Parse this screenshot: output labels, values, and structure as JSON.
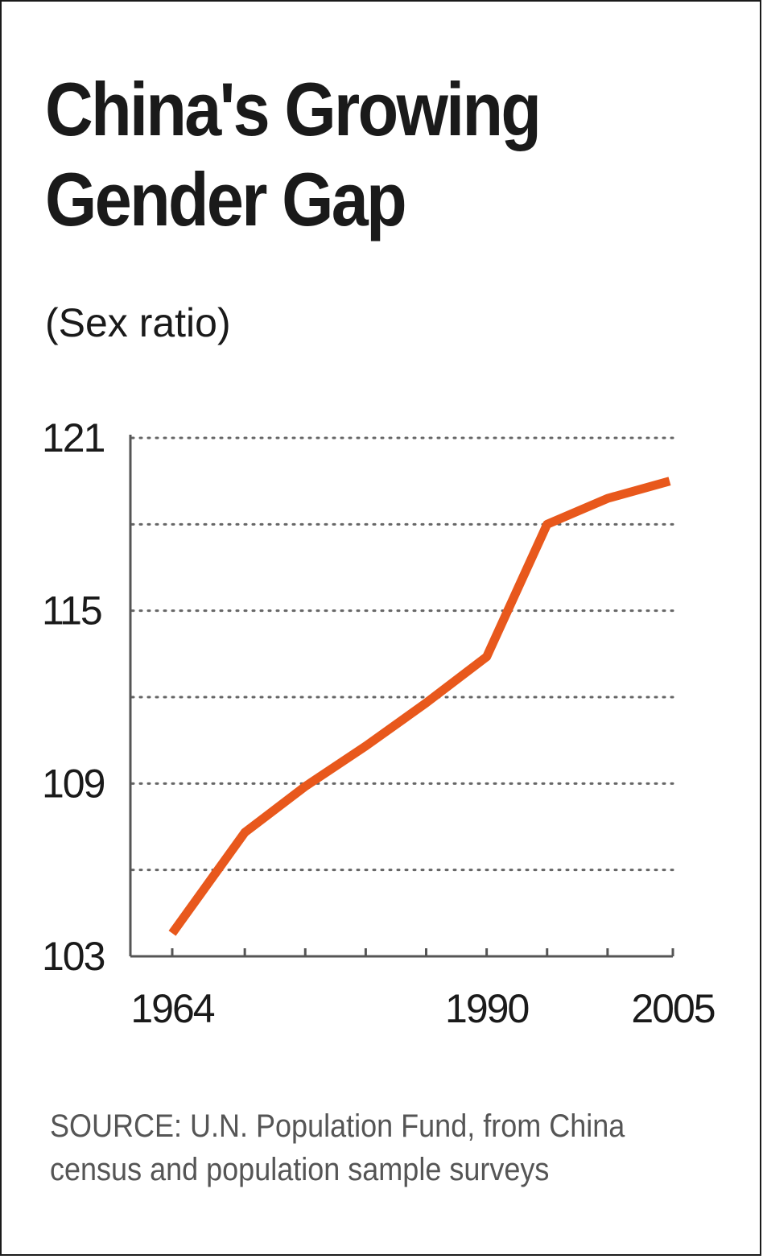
{
  "chart_data": {
    "type": "line",
    "title_lines": [
      "China's Growing",
      "Gender Gap"
    ],
    "subtitle": "(Sex ratio)",
    "ylim": [
      103,
      121
    ],
    "yticks": [
      103,
      109,
      115,
      121
    ],
    "xlim": [
      1964,
      2005
    ],
    "xticks": [
      1964,
      1990,
      2005
    ],
    "grid": true,
    "series": [
      {
        "x": [
          1964,
          1970,
          1975,
          1980,
          1985,
          1990,
          1995,
          2000,
          2005
        ],
        "values": [
          103.8,
          107.3,
          108.9,
          110.3,
          111.8,
          113.4,
          118.0,
          118.9,
          119.5
        ],
        "color": "#e8581c"
      }
    ],
    "source_lines": [
      "SOURCE: U.N. Population Fund, from China",
      "census and population sample surveys"
    ]
  }
}
